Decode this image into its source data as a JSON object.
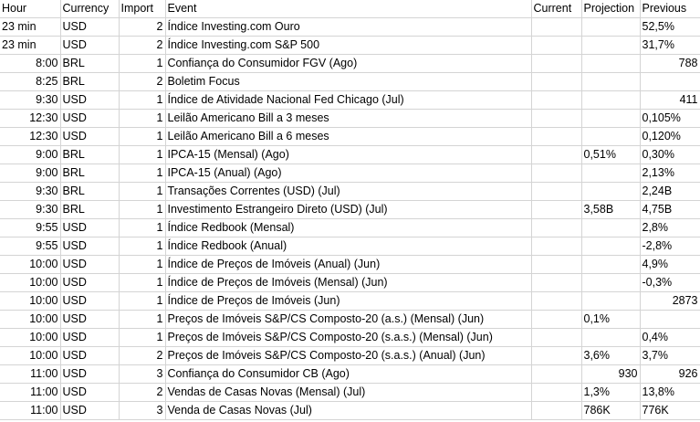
{
  "header": {
    "hour": "Hour",
    "currency": "Currency",
    "import": "Import",
    "event": "Event",
    "current": "Current",
    "projection": "Projection",
    "previous": "Previous"
  },
  "rows": [
    {
      "hour": "23 min",
      "currency": "USD",
      "import": "2",
      "event": "Índice Investing.com Ouro",
      "current": "",
      "projection": "",
      "previous": "52,5%",
      "prev_align": "l"
    },
    {
      "hour": "23 min",
      "currency": "USD",
      "import": "2",
      "event": "Índice Investing.com S&P 500",
      "current": "",
      "projection": "",
      "previous": "31,7%",
      "prev_align": "l"
    },
    {
      "hour": "8:00",
      "currency": "BRL",
      "import": "1",
      "event": "Confiança do Consumidor FGV (Ago)",
      "current": "",
      "projection": "",
      "previous": "788",
      "prev_align": "r"
    },
    {
      "hour": "8:25",
      "currency": "BRL",
      "import": "2",
      "event": "Boletim Focus",
      "current": "",
      "projection": "",
      "previous": "",
      "prev_align": "l"
    },
    {
      "hour": "9:30",
      "currency": "USD",
      "import": "1",
      "event": "Índice de Atividade Nacional Fed Chicago (Jul)",
      "current": "",
      "projection": "",
      "previous": "411",
      "prev_align": "r"
    },
    {
      "hour": "12:30",
      "currency": "USD",
      "import": "1",
      "event": "Leilão Americano Bill a 3 meses",
      "current": "",
      "projection": "",
      "previous": "0,105%",
      "prev_align": "l"
    },
    {
      "hour": "12:30",
      "currency": "USD",
      "import": "1",
      "event": "Leilão Americano Bill a 6 meses",
      "current": "",
      "projection": "",
      "previous": "0,120%",
      "prev_align": "l"
    },
    {
      "hour": "9:00",
      "currency": "BRL",
      "import": "1",
      "event": "IPCA-15 (Mensal) (Ago)",
      "current": "",
      "projection": "0,51%",
      "previous": "0,30%",
      "prev_align": "l"
    },
    {
      "hour": "9:00",
      "currency": "BRL",
      "import": "1",
      "event": "IPCA-15 (Anual) (Ago)",
      "current": "",
      "projection": "",
      "previous": "2,13%",
      "prev_align": "l"
    },
    {
      "hour": "9:30",
      "currency": "BRL",
      "import": "1",
      "event": "Transações Correntes (USD) (Jul)",
      "current": "",
      "projection": "",
      "previous": "2,24B",
      "prev_align": "l"
    },
    {
      "hour": "9:30",
      "currency": "BRL",
      "import": "1",
      "event": "Investimento Estrangeiro Direto (USD) (Jul)",
      "current": "",
      "projection": "3,58B",
      "previous": "4,75B",
      "prev_align": "l"
    },
    {
      "hour": "9:55",
      "currency": "USD",
      "import": "1",
      "event": "Índice Redbook (Mensal)",
      "current": "",
      "projection": "",
      "previous": "2,8%",
      "prev_align": "l"
    },
    {
      "hour": "9:55",
      "currency": "USD",
      "import": "1",
      "event": "Índice Redbook (Anual)",
      "current": "",
      "projection": "",
      "previous": "-2,8%",
      "prev_align": "l"
    },
    {
      "hour": "10:00",
      "currency": "USD",
      "import": "1",
      "event": "Índice de Preços de Imóveis (Anual) (Jun)",
      "current": "",
      "projection": "",
      "previous": "4,9%",
      "prev_align": "l"
    },
    {
      "hour": "10:00",
      "currency": "USD",
      "import": "1",
      "event": "Índice de Preços de Imóveis (Mensal) (Jun)",
      "current": "",
      "projection": "",
      "previous": "-0,3%",
      "prev_align": "l"
    },
    {
      "hour": "10:00",
      "currency": "USD",
      "import": "1",
      "event": "Índice de Preços de Imóveis (Jun)",
      "current": "",
      "projection": "",
      "previous": "2873",
      "prev_align": "r"
    },
    {
      "hour": "10:00",
      "currency": "USD",
      "import": "1",
      "event": "Preços de Imóveis S&P/CS Composto-20 (a.s.) (Mensal) (Jun)",
      "current": "",
      "projection": "0,1%",
      "previous": "",
      "prev_align": "l"
    },
    {
      "hour": "10:00",
      "currency": "USD",
      "import": "1",
      "event": "Preços de Imóveis S&P/CS Composto-20 (s.a.s.) (Mensal) (Jun)",
      "current": "",
      "projection": "",
      "previous": "0,4%",
      "prev_align": "l"
    },
    {
      "hour": "10:00",
      "currency": "USD",
      "import": "2",
      "event": "Preços de Imóveis S&P/CS Composto-20 (s.a.s.) (Anual) (Jun)",
      "current": "",
      "projection": "3,6%",
      "previous": "3,7%",
      "prev_align": "l"
    },
    {
      "hour": "11:00",
      "currency": "USD",
      "import": "3",
      "event": "Confiança do Consumidor CB (Ago)",
      "current": "",
      "projection": "930",
      "previous": "926",
      "prev_align": "r",
      "proj_align": "r"
    },
    {
      "hour": "11:00",
      "currency": "USD",
      "import": "2",
      "event": "Vendas de Casas Novas (Mensal) (Jul)",
      "current": "",
      "projection": "1,3%",
      "previous": "13,8%",
      "prev_align": "l"
    },
    {
      "hour": "11:00",
      "currency": "USD",
      "import": "3",
      "event": "Venda de Casas Novas (Jul)",
      "current": "",
      "projection": "786K",
      "previous": "776K",
      "prev_align": "l"
    }
  ]
}
